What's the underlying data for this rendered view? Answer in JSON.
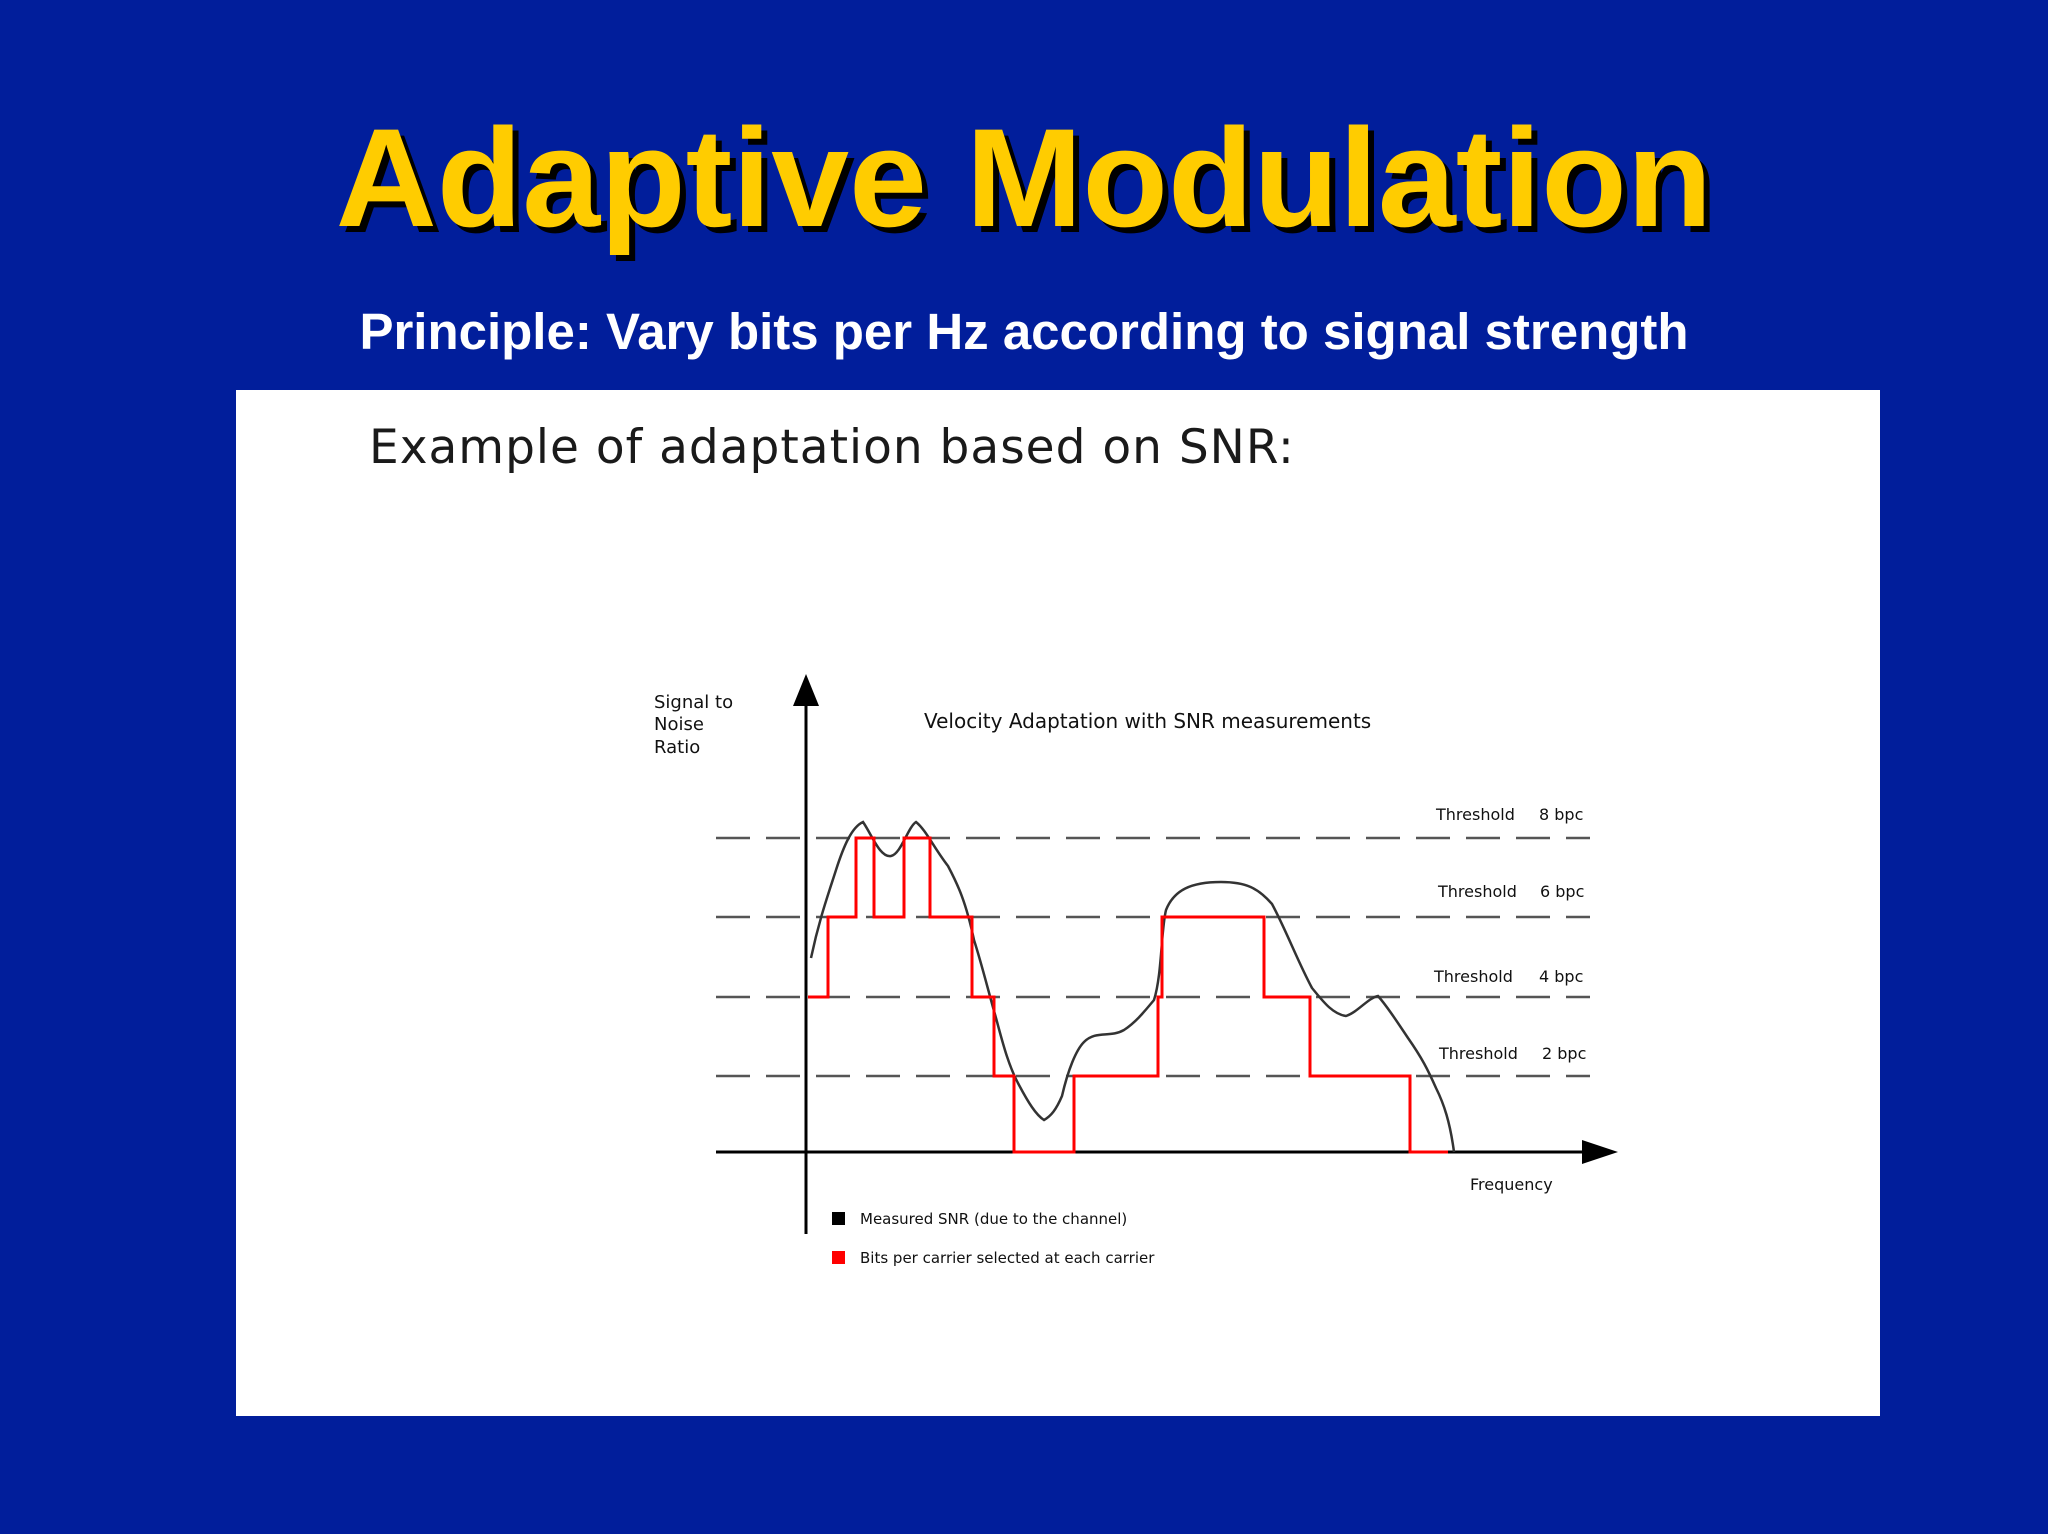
{
  "slide": {
    "title": "Adaptive Modulation",
    "subtitle": "Principle: Vary bits per Hz according to signal strength",
    "background_color": "#011e9b",
    "title_color": "#ffcc00"
  },
  "panel": {
    "heading": "Example of adaptation based on SNR:"
  },
  "diagram": {
    "title": "Velocity Adaptation with SNR measurements",
    "y_axis_label": [
      "Signal to",
      "Noise",
      "Ratio"
    ],
    "x_axis_label": "Frequency",
    "thresholds": [
      {
        "label": "Threshold",
        "value": "8 bpc",
        "level": 8
      },
      {
        "label": "Threshold",
        "value": "6 bpc",
        "level": 6
      },
      {
        "label": "Threshold",
        "value": "4 bpc",
        "level": 4
      },
      {
        "label": "Threshold",
        "value": "2 bpc",
        "level": 2
      }
    ],
    "legend": [
      {
        "label": "Measured SNR (due to the channel)",
        "color": "#000000"
      },
      {
        "label": "Bits per carrier selected at each carrier",
        "color": "#ff0000"
      }
    ],
    "snr_color": "#333333",
    "bits_color": "#ff0000"
  }
}
